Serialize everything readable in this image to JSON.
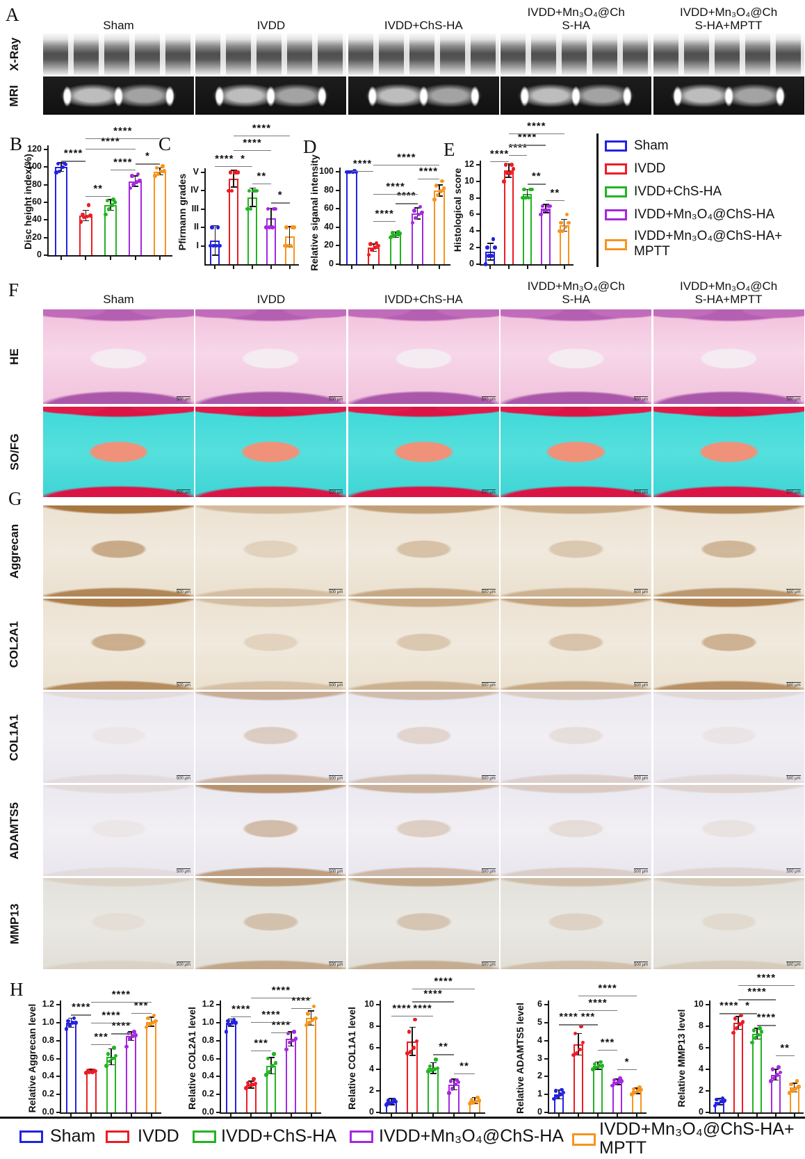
{
  "figure": {
    "panel_labels": {
      "A": "A",
      "B": "B",
      "C": "C",
      "D": "D",
      "E": "E",
      "F": "F",
      "G": "G",
      "H": "H"
    },
    "scale_bar_label": "500 μm"
  },
  "groups": {
    "names": [
      "Sham",
      "IVDD",
      "IVDD+ChS-HA",
      "IVDD+Mn₃O₄@ChS-HA",
      "IVDD+Mn₃O₄@ChS-HA+MPTT"
    ],
    "colors": [
      "#2222e0",
      "#ed1c24",
      "#22b422",
      "#a428e0",
      "#f7941d"
    ],
    "column_headers": [
      "Sham",
      "IVDD",
      "IVDD+ChS-HA",
      "IVDD+Mn₃O₄@Ch\nS-HA",
      "IVDD+Mn₃O₄@Ch\nS-HA+MPTT"
    ]
  },
  "panel_a": {
    "rows": [
      {
        "label": "X-Ray",
        "variant": "xray"
      },
      {
        "label": "MRI",
        "variant": "mri"
      }
    ]
  },
  "panel_f": {
    "rows": [
      {
        "label": "HE",
        "variant": "he"
      },
      {
        "label": "SO/FG",
        "variant": "sofg"
      }
    ]
  },
  "panel_g": {
    "rows": [
      {
        "label": "Aggrecan",
        "variant": "ihc",
        "base": "warm",
        "tints": [
          0.8,
          0.3,
          0.5,
          0.42,
          0.65
        ]
      },
      {
        "label": "COL2A1",
        "variant": "ihc",
        "base": "warm",
        "tints": [
          0.75,
          0.28,
          0.42,
          0.48,
          0.7
        ]
      },
      {
        "label": "COL1A1",
        "variant": "ihc",
        "base": "cool",
        "tints": [
          0.1,
          0.42,
          0.32,
          0.2,
          0.12
        ]
      },
      {
        "label": "ADAMTS5",
        "variant": "ihc",
        "base": "cool",
        "tints": [
          0.1,
          0.62,
          0.4,
          0.22,
          0.16
        ]
      },
      {
        "label": "MMP13",
        "variant": "ihc",
        "base": "gray",
        "tints": [
          0.12,
          0.5,
          0.45,
          0.28,
          0.18
        ]
      }
    ]
  },
  "legend_right": {
    "items": [
      "Sham",
      "IVDD",
      "IVDD+ChS-HA",
      "IVDD+Mn₃O₄@ChS-HA",
      "IVDD+Mn₃O₄@ChS-HA+\nMPTT"
    ]
  },
  "legend_bottom": {
    "items": [
      "Sham",
      "IVDD",
      "IVDD+ChS-HA",
      "IVDD+Mn₃O₄@ChS-HA",
      "IVDD+Mn₃O₄@ChS-HA+\nMPTT"
    ]
  },
  "chart_data": [
    {
      "id": "B",
      "type": "bar",
      "ylabel": "Disc height index(%)",
      "ylim": [
        0,
        120
      ],
      "ytick_labels": [
        "0",
        "20",
        "40",
        "60",
        "80",
        "100",
        "120"
      ],
      "ytick_values": [
        0,
        20,
        40,
        60,
        80,
        100,
        120
      ],
      "categories": [
        "Sham",
        "IVDD",
        "IVDD+ChS-HA",
        "IVDD+Mn₃O₄@ChS-HA",
        "IVDD+Mn₃O₄@ChS-HA+MPTT"
      ],
      "values": [
        100,
        45,
        57,
        84,
        95
      ],
      "errors": [
        5,
        6,
        6,
        6,
        4
      ],
      "points": [
        [
          94,
          95,
          100,
          103,
          104,
          105
        ],
        [
          38,
          43,
          44,
          45,
          46,
          57
        ],
        [
          46,
          52,
          57,
          60,
          62,
          63
        ],
        [
          76,
          80,
          83,
          85,
          90,
          92
        ],
        [
          90,
          92,
          95,
          96,
          99,
          101
        ]
      ],
      "sig": [
        {
          "a": 0,
          "b": 1,
          "stars": "****",
          "y": 107
        },
        {
          "a": 1,
          "b": 2,
          "stars": "**",
          "y": 67
        },
        {
          "a": 2,
          "b": 3,
          "stars": "****",
          "y": 97
        },
        {
          "a": 3,
          "b": 4,
          "stars": "*",
          "y": 104
        },
        {
          "a": 1,
          "b": 3,
          "stars": "****",
          "y": 121
        },
        {
          "a": 1,
          "b": 4,
          "stars": "****",
          "y": 133
        }
      ]
    },
    {
      "id": "C",
      "type": "bar",
      "ylabel": "Pfirmann grades",
      "ylim": [
        0,
        5.6
      ],
      "ytick_labels": [
        "I",
        "II",
        "III",
        "IV",
        "V"
      ],
      "ytick_values": [
        1,
        2,
        3,
        4,
        5
      ],
      "categories": [
        "Sham",
        "IVDD",
        "IVDD+ChS-HA",
        "IVDD+Mn₃O₄@ChS-HA",
        "IVDD+Mn₃O₄@ChS-HA+MPTT"
      ],
      "values": [
        1.3,
        4.65,
        3.65,
        2.5,
        1.5
      ],
      "errors": [
        0.8,
        0.45,
        0.5,
        0.55,
        0.55
      ],
      "points": [
        [
          1,
          1,
          1,
          1,
          2,
          2
        ],
        [
          4,
          4,
          5,
          5,
          5,
          5
        ],
        [
          3,
          3,
          4,
          4,
          4,
          4
        ],
        [
          2,
          2,
          2,
          3,
          3,
          3
        ],
        [
          1,
          1,
          1,
          2,
          2,
          2
        ]
      ],
      "sig": [
        {
          "a": 0,
          "b": 1,
          "stars": "****",
          "y": 5.35
        },
        {
          "a": 1,
          "b": 2,
          "stars": "*",
          "y": 5.35
        },
        {
          "a": 2,
          "b": 3,
          "stars": "**",
          "y": 4.4
        },
        {
          "a": 3,
          "b": 4,
          "stars": "*",
          "y": 3.35
        },
        {
          "a": 1,
          "b": 3,
          "stars": "****",
          "y": 6.2
        },
        {
          "a": 1,
          "b": 4,
          "stars": "****",
          "y": 7.0
        }
      ]
    },
    {
      "id": "D",
      "type": "bar",
      "ylabel": "Relative siganal intensity",
      "ylim": [
        0,
        110
      ],
      "ytick_labels": [
        "0",
        "20",
        "40",
        "60",
        "80",
        "100"
      ],
      "ytick_values": [
        0,
        20,
        40,
        60,
        80,
        100
      ],
      "categories": [
        "Sham",
        "IVDD",
        "IVDD+ChS-HA",
        "IVDD+Mn₃O₄@ChS-HA",
        "IVDD+Mn₃O₄@ChS-HA+MPTT"
      ],
      "values": [
        100,
        18,
        32,
        55,
        80
      ],
      "errors": [
        1,
        4,
        3,
        6,
        6
      ],
      "points": [
        [
          100,
          100,
          100,
          100,
          100,
          101
        ],
        [
          10,
          16,
          18,
          20,
          22,
          23
        ],
        [
          29,
          31,
          32,
          33,
          34,
          35
        ],
        [
          45,
          50,
          54,
          56,
          58,
          62
        ],
        [
          70,
          75,
          79,
          82,
          85,
          90
        ]
      ],
      "sig": [
        {
          "a": 0,
          "b": 1,
          "stars": "****",
          "y": 101
        },
        {
          "a": 1,
          "b": 2,
          "stars": "****",
          "y": 47
        },
        {
          "a": 2,
          "b": 3,
          "stars": "****",
          "y": 66
        },
        {
          "a": 3,
          "b": 4,
          "stars": "****",
          "y": 93
        },
        {
          "a": 1,
          "b": 3,
          "stars": "****",
          "y": 76
        },
        {
          "a": 1,
          "b": 4,
          "stars": "****",
          "y": 108
        }
      ]
    },
    {
      "id": "E",
      "type": "bar",
      "ylabel": "Histological score",
      "ylim": [
        0,
        13
      ],
      "ytick_labels": [
        "0",
        "2",
        "4",
        "6",
        "8",
        "10",
        "12"
      ],
      "ytick_values": [
        0,
        2,
        4,
        6,
        8,
        10,
        12
      ],
      "categories": [
        "Sham",
        "IVDD",
        "IVDD+ChS-HA",
        "IVDD+Mn₃O₄@ChS-HA",
        "IVDD+Mn₃O₄@ChS-HA+MPTT"
      ],
      "values": [
        1.5,
        11.3,
        8.5,
        6.7,
        4.7
      ],
      "errors": [
        1,
        0.8,
        0.5,
        0.5,
        0.7
      ],
      "points": [
        [
          0,
          1,
          1,
          2,
          2,
          3
        ],
        [
          10,
          11,
          11,
          11.5,
          12,
          12
        ],
        [
          8,
          8,
          8,
          9,
          9,
          9
        ],
        [
          6,
          6.5,
          6.5,
          7,
          7,
          7
        ],
        [
          4,
          4,
          4.5,
          5,
          5,
          6
        ]
      ],
      "sig": [
        {
          "a": 0,
          "b": 1,
          "stars": "****",
          "y": 12.4
        },
        {
          "a": 1,
          "b": 2,
          "stars": "****",
          "y": 13.2
        },
        {
          "a": 2,
          "b": 3,
          "stars": "**",
          "y": 9.7
        },
        {
          "a": 3,
          "b": 4,
          "stars": "**",
          "y": 7.7
        },
        {
          "a": 1,
          "b": 3,
          "stars": "****",
          "y": 14.4
        },
        {
          "a": 1,
          "b": 4,
          "stars": "****",
          "y": 15.8
        }
      ]
    },
    {
      "id": "H1",
      "type": "bar",
      "ylabel": "Relative Aggrecan level",
      "ylim": [
        0,
        1.2
      ],
      "ytick_labels": [
        "0.0",
        "0.2",
        "0.4",
        "0.6",
        "0.8",
        "1.0",
        "1.2"
      ],
      "ytick_values": [
        0,
        0.2,
        0.4,
        0.6,
        0.8,
        1.0,
        1.2
      ],
      "categories": [
        "Sham",
        "IVDD",
        "IVDD+ChS-HA",
        "IVDD+Mn₃O₄@ChS-HA",
        "IVDD+Mn₃O₄@ChS-HA+MPTT"
      ],
      "values": [
        1.0,
        0.46,
        0.62,
        0.85,
        1.01
      ],
      "errors": [
        0.05,
        0.02,
        0.09,
        0.05,
        0.05
      ],
      "points": [
        [
          0.93,
          0.97,
          1.0,
          1.0,
          1.02,
          1.05
        ],
        [
          0.44,
          0.45,
          0.45,
          0.46,
          0.47,
          0.47
        ],
        [
          0.52,
          0.57,
          0.6,
          0.63,
          0.65,
          0.72
        ],
        [
          0.73,
          0.82,
          0.85,
          0.86,
          0.88,
          0.9
        ],
        [
          0.95,
          0.98,
          1.0,
          1.02,
          1.05,
          1.08
        ]
      ],
      "sig": [
        {
          "a": 0,
          "b": 1,
          "stars": "****",
          "y": 1.09
        },
        {
          "a": 1,
          "b": 2,
          "stars": "***",
          "y": 0.76
        },
        {
          "a": 2,
          "b": 3,
          "stars": "****",
          "y": 0.88
        },
        {
          "a": 1,
          "b": 3,
          "stars": "****",
          "y": 1.0
        },
        {
          "a": 3,
          "b": 4,
          "stars": "***",
          "y": 1.11
        },
        {
          "a": 1,
          "b": 4,
          "stars": "****",
          "y": 1.23
        }
      ]
    },
    {
      "id": "H2",
      "type": "bar",
      "ylabel": "Relative COL2A1 level",
      "ylim": [
        0,
        1.2
      ],
      "ytick_labels": [
        "0.0",
        "0.2",
        "0.4",
        "0.6",
        "0.8",
        "1.0",
        "1.2"
      ],
      "ytick_values": [
        0,
        0.2,
        0.4,
        0.6,
        0.8,
        1.0,
        1.2
      ],
      "categories": [
        "Sham",
        "IVDD",
        "IVDD+ChS-HA",
        "IVDD+Mn₃O₄@ChS-HA",
        "IVDD+Mn₃O₄@ChS-HA+MPTT"
      ],
      "values": [
        1.0,
        0.31,
        0.52,
        0.82,
        1.05
      ],
      "errors": [
        0.04,
        0.04,
        0.09,
        0.08,
        0.08
      ],
      "points": [
        [
          0.9,
          0.98,
          1.0,
          1.0,
          1.02,
          1.03
        ],
        [
          0.27,
          0.3,
          0.31,
          0.32,
          0.33,
          0.37
        ],
        [
          0.42,
          0.45,
          0.52,
          0.55,
          0.6,
          0.65
        ],
        [
          0.7,
          0.78,
          0.8,
          0.82,
          0.88,
          0.9
        ],
        [
          0.97,
          1.0,
          1.03,
          1.05,
          1.1,
          1.18
        ]
      ],
      "sig": [
        {
          "a": 0,
          "b": 1,
          "stars": "****",
          "y": 1.07
        },
        {
          "a": 1,
          "b": 2,
          "stars": "***",
          "y": 0.69
        },
        {
          "a": 2,
          "b": 3,
          "stars": "****",
          "y": 0.89
        },
        {
          "a": 1,
          "b": 3,
          "stars": "****",
          "y": 1.01
        },
        {
          "a": 3,
          "b": 4,
          "stars": "****",
          "y": 1.16
        },
        {
          "a": 1,
          "b": 4,
          "stars": "****",
          "y": 1.28
        }
      ]
    },
    {
      "id": "H3",
      "type": "bar",
      "ylabel": "Relative COL1A1 level",
      "ylim": [
        0,
        10
      ],
      "ytick_labels": [
        "0",
        "2",
        "4",
        "6",
        "8",
        "10"
      ],
      "ytick_values": [
        0,
        2,
        4,
        6,
        8,
        10
      ],
      "categories": [
        "Sham",
        "IVDD",
        "IVDD+ChS-HA",
        "IVDD+Mn₃O₄@ChS-HA",
        "IVDD+Mn₃O₄@ChS-HA+MPTT"
      ],
      "values": [
        1.0,
        6.6,
        4.1,
        2.6,
        1.1
      ],
      "errors": [
        0.3,
        1.3,
        0.5,
        0.5,
        0.3
      ],
      "points": [
        [
          0.7,
          0.85,
          0.95,
          1.0,
          1.1,
          1.2
        ],
        [
          5.5,
          5.6,
          6.0,
          6.6,
          7.5,
          8.6
        ],
        [
          3.8,
          3.9,
          4.0,
          4.1,
          4.3,
          4.9
        ],
        [
          1.8,
          2.2,
          2.6,
          2.8,
          2.9,
          3.0
        ],
        [
          0.8,
          0.9,
          1.0,
          1.1,
          1.2,
          1.4
        ]
      ],
      "sig": [
        {
          "a": 0,
          "b": 1,
          "stars": "****",
          "y": 9.0
        },
        {
          "a": 1,
          "b": 2,
          "stars": "****",
          "y": 9.0
        },
        {
          "a": 2,
          "b": 3,
          "stars": "**",
          "y": 5.4
        },
        {
          "a": 3,
          "b": 4,
          "stars": "**",
          "y": 3.6
        },
        {
          "a": 1,
          "b": 3,
          "stars": "****",
          "y": 10.3
        },
        {
          "a": 1,
          "b": 4,
          "stars": "****",
          "y": 11.5
        }
      ]
    },
    {
      "id": "H4",
      "type": "bar",
      "ylabel": "Relative ADAMTS5 level",
      "ylim": [
        0,
        6
      ],
      "ytick_labels": [
        "0",
        "1",
        "2",
        "3",
        "4",
        "5",
        "6"
      ],
      "ytick_values": [
        0,
        1,
        2,
        3,
        4,
        5,
        6
      ],
      "categories": [
        "Sham",
        "IVDD",
        "IVDD+ChS-HA",
        "IVDD+Mn₃O₄@ChS-HA",
        "IVDD+Mn₃O₄@ChS-HA+MPTT"
      ],
      "values": [
        1.0,
        3.8,
        2.6,
        1.7,
        1.2
      ],
      "errors": [
        0.25,
        0.6,
        0.2,
        0.15,
        0.15
      ],
      "points": [
        [
          0.75,
          0.9,
          1.0,
          1.1,
          1.2,
          1.25
        ],
        [
          3.2,
          3.3,
          3.5,
          3.9,
          4.4,
          4.8
        ],
        [
          2.4,
          2.5,
          2.6,
          2.6,
          2.7,
          2.8
        ],
        [
          1.5,
          1.6,
          1.7,
          1.75,
          1.8,
          1.9
        ],
        [
          1.0,
          1.1,
          1.2,
          1.25,
          1.3,
          1.4
        ]
      ],
      "sig": [
        {
          "a": 0,
          "b": 1,
          "stars": "****",
          "y": 4.9
        },
        {
          "a": 1,
          "b": 2,
          "stars": "***",
          "y": 4.9
        },
        {
          "a": 2,
          "b": 3,
          "stars": "***",
          "y": 3.5
        },
        {
          "a": 3,
          "b": 4,
          "stars": "*",
          "y": 2.4
        },
        {
          "a": 1,
          "b": 3,
          "stars": "****",
          "y": 5.7
        },
        {
          "a": 1,
          "b": 4,
          "stars": "****",
          "y": 6.5
        }
      ]
    },
    {
      "id": "H5",
      "type": "bar",
      "ylabel": "Relative MMP13 level",
      "ylim": [
        0,
        10
      ],
      "ytick_labels": [
        "0",
        "2",
        "4",
        "6",
        "8",
        "10"
      ],
      "ytick_values": [
        0,
        2,
        4,
        6,
        8,
        10
      ],
      "categories": [
        "Sham",
        "IVDD",
        "IVDD+ChS-HA",
        "IVDD+Mn₃O₄@ChS-HA",
        "IVDD+Mn₃O₄@ChS-HA+MPTT"
      ],
      "values": [
        1.0,
        8.3,
        7.3,
        3.5,
        2.3
      ],
      "errors": [
        0.3,
        0.6,
        0.5,
        0.5,
        0.4
      ],
      "points": [
        [
          0.6,
          0.8,
          1.0,
          1.1,
          1.2,
          1.3
        ],
        [
          7.4,
          7.8,
          8.2,
          8.4,
          8.7,
          9.0
        ],
        [
          6.5,
          6.9,
          7.2,
          7.5,
          7.6,
          7.8
        ],
        [
          2.9,
          3.2,
          3.5,
          3.7,
          4.0,
          4.2
        ],
        [
          1.8,
          2.0,
          2.2,
          2.4,
          2.6,
          2.9
        ]
      ],
      "sig": [
        {
          "a": 0,
          "b": 1,
          "stars": "****",
          "y": 9.2
        },
        {
          "a": 1,
          "b": 2,
          "stars": "*",
          "y": 9.2
        },
        {
          "a": 2,
          "b": 3,
          "stars": "****",
          "y": 8.1
        },
        {
          "a": 3,
          "b": 4,
          "stars": "**",
          "y": 5.3
        },
        {
          "a": 1,
          "b": 3,
          "stars": "****",
          "y": 10.5
        },
        {
          "a": 1,
          "b": 4,
          "stars": "****",
          "y": 11.8
        }
      ]
    }
  ]
}
